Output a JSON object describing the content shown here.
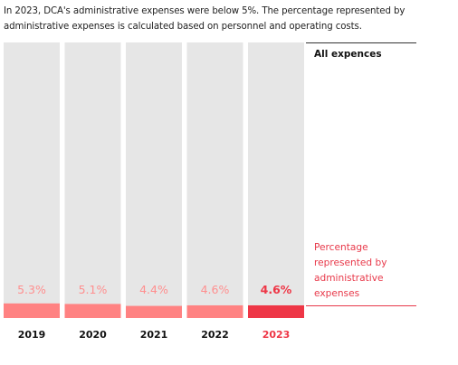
{
  "intro": {
    "text": "In 2023, DCA's administrative expenses were below 5%. The percentage represented by administrative expenses is calculated based on personnel and operating costs."
  },
  "legend": {
    "all_expenses": "All expences",
    "admin_share": "Percentage represented by administrative expenses"
  },
  "colors": {
    "total_bar": "#e6e6e6",
    "admin_bar": "#ff8282",
    "admin_bar_highlight": "#ee3646",
    "value_label": "#ff8f8f",
    "value_label_highlight": "#ee3646",
    "year_label": "#111111",
    "year_label_highlight": "#ee3646"
  },
  "chart_data": {
    "type": "bar",
    "categories": [
      "2019",
      "2020",
      "2021",
      "2022",
      "2023"
    ],
    "series": [
      {
        "name": "All expences",
        "values": [
          100,
          100,
          100,
          100,
          100
        ]
      },
      {
        "name": "Percentage represented by administrative expenses",
        "values": [
          5.3,
          5.1,
          4.4,
          4.6,
          4.6
        ]
      }
    ],
    "value_labels": [
      "5.3%",
      "5.1%",
      "4.4%",
      "4.6%",
      "4.6%"
    ],
    "highlight_category": "2023",
    "ylim": [
      0,
      100
    ],
    "grid": false,
    "legend_position": "right"
  }
}
